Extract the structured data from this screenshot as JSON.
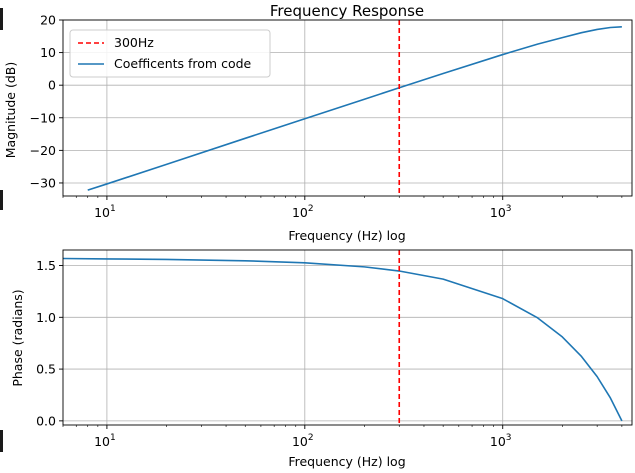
{
  "chart_data": [
    {
      "type": "line",
      "title": "Frequency Response",
      "xlabel": "Frequency (Hz) log",
      "ylabel": "Magnitude (dB)",
      "xscale": "log",
      "xlim": [
        6,
        4500
      ],
      "ylim": [
        -34,
        20
      ],
      "xticks": [
        {
          "value": 10,
          "base": "10",
          "exp": "1"
        },
        {
          "value": 100,
          "base": "10",
          "exp": "2"
        },
        {
          "value": 1000,
          "base": "10",
          "exp": "3"
        }
      ],
      "yticks": [
        {
          "value": 20,
          "label": "20"
        },
        {
          "value": 10,
          "label": "10"
        },
        {
          "value": 0,
          "label": "0"
        },
        {
          "value": -10,
          "label": "−10"
        },
        {
          "value": -20,
          "label": "−20"
        },
        {
          "value": -30,
          "label": "−30"
        }
      ],
      "grid": true,
      "legend": "top-left",
      "series": [
        {
          "name": "Coefficents from code",
          "color": "#1f77b4",
          "style": "solid",
          "x": [
            8,
            10,
            20,
            50,
            100,
            200,
            300,
            500,
            1000,
            1500,
            2000,
            2500,
            3000,
            3500,
            4000
          ],
          "y": [
            -32.2,
            -30.3,
            -24.3,
            -16.3,
            -10.3,
            -4.3,
            -0.8,
            3.6,
            9.4,
            12.6,
            14.6,
            16.1,
            17.1,
            17.7,
            17.9
          ]
        },
        {
          "name": "300Hz",
          "color": "#ff0000",
          "style": "dashed",
          "vline_x": 300
        }
      ]
    },
    {
      "type": "line",
      "title": "",
      "xlabel": "Frequency (Hz) log",
      "ylabel": "Phase (radians)",
      "xscale": "log",
      "xlim": [
        6,
        4500
      ],
      "ylim": [
        -0.04,
        1.65
      ],
      "xticks": [
        {
          "value": 10,
          "base": "10",
          "exp": "1"
        },
        {
          "value": 100,
          "base": "10",
          "exp": "2"
        },
        {
          "value": 1000,
          "base": "10",
          "exp": "3"
        }
      ],
      "yticks": [
        {
          "value": 1.5,
          "label": "1.5"
        },
        {
          "value": 1.0,
          "label": "1.0"
        },
        {
          "value": 0.5,
          "label": "0.5"
        },
        {
          "value": 0.0,
          "label": "0.0"
        }
      ],
      "grid": true,
      "series": [
        {
          "color": "#1f77b4",
          "style": "solid",
          "x": [
            6,
            10,
            20,
            50,
            100,
            200,
            300,
            500,
            1000,
            1500,
            2000,
            2500,
            3000,
            3500,
            4000
          ],
          "y": [
            1.568,
            1.564,
            1.559,
            1.546,
            1.526,
            1.487,
            1.447,
            1.369,
            1.18,
            0.995,
            0.811,
            0.622,
            0.427,
            0.221,
            0.0
          ]
        },
        {
          "color": "#ff0000",
          "style": "dashed",
          "vline_x": 300
        }
      ]
    }
  ]
}
